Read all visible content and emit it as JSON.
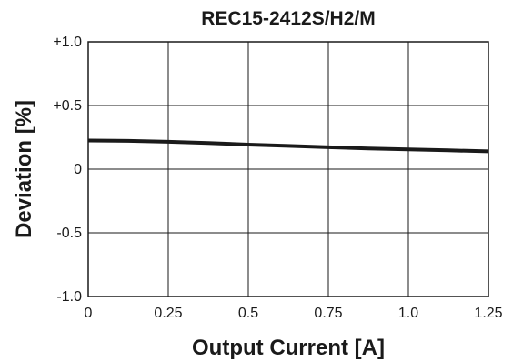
{
  "chart_data": {
    "type": "line",
    "title": "REC15-2412S/H2/M",
    "xlabel": "Output Current [A]",
    "ylabel": "Deviation [%]",
    "xlim": [
      0,
      1.25
    ],
    "ylim": [
      -1.0,
      1.0
    ],
    "x_ticks": [
      {
        "value": 0,
        "label": "0"
      },
      {
        "value": 0.25,
        "label": "0.25"
      },
      {
        "value": 0.5,
        "label": "0.5"
      },
      {
        "value": 0.75,
        "label": "0.75"
      },
      {
        "value": 1.0,
        "label": "1.0"
      },
      {
        "value": 1.25,
        "label": "1.25"
      }
    ],
    "y_ticks": [
      {
        "value": 1.0,
        "label": "+1.0"
      },
      {
        "value": 0.5,
        "label": "+0.5"
      },
      {
        "value": 0,
        "label": "0"
      },
      {
        "value": -0.5,
        "label": "-0.5"
      },
      {
        "value": -1.0,
        "label": "-1.0"
      }
    ],
    "grid": true,
    "line_color": "#1a1a1a",
    "series": [
      {
        "x": [
          0,
          0.125,
          0.25,
          0.375,
          0.5,
          0.625,
          0.75,
          0.875,
          1.0,
          1.125,
          1.25
        ],
        "y": [
          0.225,
          0.222,
          0.215,
          0.205,
          0.193,
          0.183,
          0.172,
          0.163,
          0.155,
          0.148,
          0.14
        ]
      }
    ]
  }
}
